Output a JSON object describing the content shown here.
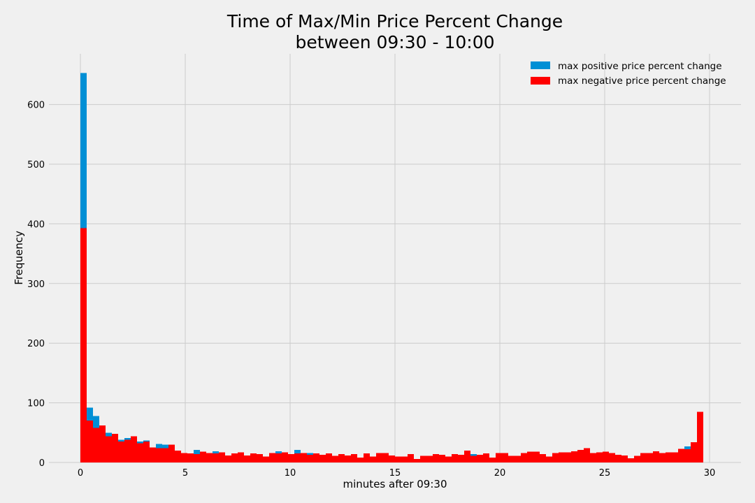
{
  "chart_data": {
    "type": "bar",
    "title_line1": "Time of Max/Min Price Percent Change",
    "title_line2": "between 09:30 - 10:00",
    "xlabel": "minutes after 09:30",
    "ylabel": "Frequency",
    "xlim": [
      -1.5,
      31.5
    ],
    "ylim": [
      0,
      685
    ],
    "xticks": [
      0,
      5,
      10,
      15,
      20,
      25,
      30
    ],
    "yticks": [
      0,
      100,
      200,
      300,
      400,
      500,
      600
    ],
    "grid": true,
    "legend_position": "top-right",
    "bin_start": 0,
    "bin_width": 0.3,
    "series": [
      {
        "name": "max positive price percent change",
        "color": "#008fd5",
        "values": [
          653,
          92,
          78,
          62,
          50,
          38,
          38,
          41,
          32,
          35,
          37,
          24,
          31,
          30,
          30,
          20,
          16,
          15,
          21,
          18,
          16,
          19,
          17,
          12,
          15,
          17,
          12,
          15,
          14,
          10,
          16,
          19,
          17,
          14,
          21,
          16,
          16,
          15,
          13,
          15,
          11,
          14,
          12,
          14,
          8,
          15,
          10,
          16,
          16,
          12,
          10,
          10,
          14,
          6,
          11,
          11,
          14,
          13,
          10,
          14,
          13,
          20,
          14,
          13,
          15,
          8,
          16,
          16,
          11,
          11,
          16,
          18,
          18,
          14,
          10,
          16,
          17,
          17,
          19,
          21,
          24,
          16,
          17,
          18,
          16,
          13,
          12,
          7,
          11,
          16,
          16,
          19,
          16,
          17,
          17,
          23,
          27,
          34,
          85
        ]
      },
      {
        "name": "max negative price percent change",
        "color": "#ff0000",
        "values": [
          393,
          70,
          58,
          62,
          44,
          48,
          35,
          38,
          44,
          32,
          35,
          25,
          24,
          24,
          30,
          20,
          16,
          15,
          14,
          18,
          16,
          15,
          17,
          12,
          15,
          17,
          12,
          15,
          14,
          10,
          16,
          15,
          17,
          14,
          15,
          16,
          13,
          15,
          13,
          15,
          11,
          14,
          12,
          14,
          8,
          15,
          10,
          16,
          16,
          12,
          10,
          10,
          14,
          6,
          11,
          11,
          14,
          13,
          10,
          14,
          13,
          20,
          11,
          13,
          15,
          8,
          16,
          16,
          11,
          11,
          16,
          18,
          18,
          14,
          10,
          16,
          17,
          17,
          19,
          21,
          24,
          16,
          17,
          18,
          16,
          13,
          12,
          7,
          11,
          16,
          16,
          19,
          16,
          17,
          17,
          23,
          22,
          34,
          85
        ]
      }
    ]
  }
}
